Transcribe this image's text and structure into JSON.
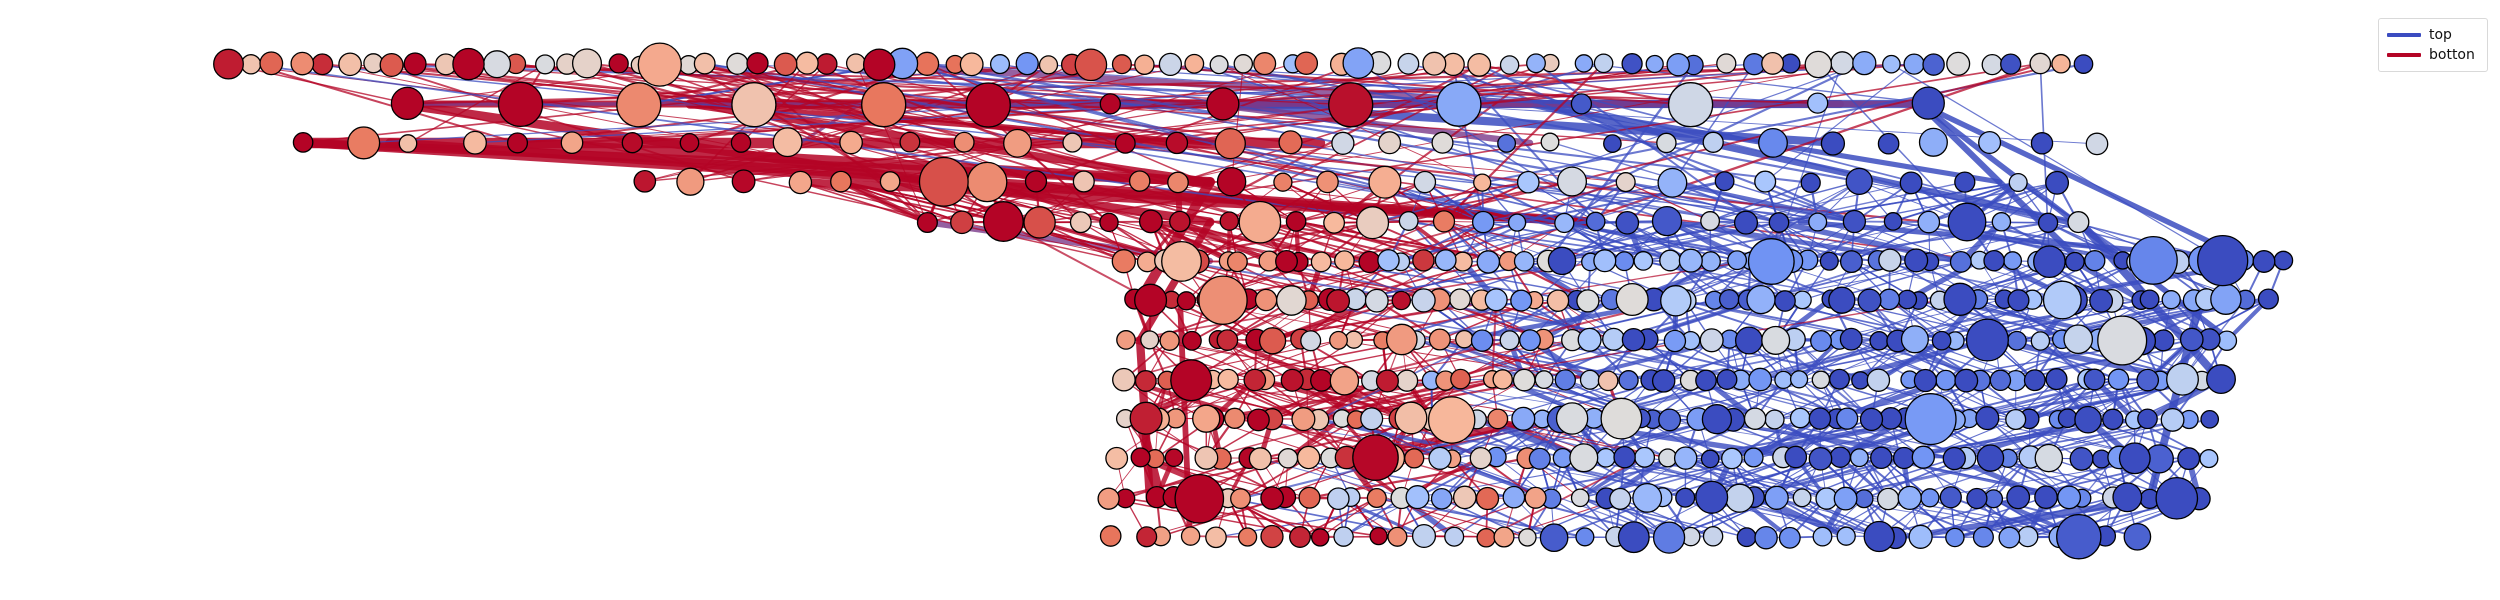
{
  "legend": {
    "items": [
      {
        "label": "top",
        "color": "#3b4cc0"
      },
      {
        "label": "botton",
        "color": "#b40426"
      }
    ]
  },
  "diagram": {
    "colormap": "coolwarm",
    "colormap_stops": [
      "#3b4cc0",
      "#6f92f3",
      "#aac7fd",
      "#dddddd",
      "#f7b89c",
      "#e7745b",
      "#b40426"
    ],
    "node_stroke": "#000000",
    "node_count": 520,
    "long_edge_count": 40,
    "local_edge_count": 340
  }
}
